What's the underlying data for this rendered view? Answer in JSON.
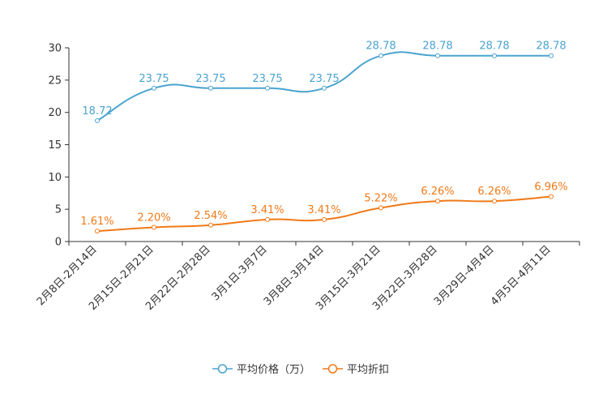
{
  "chart_data": {
    "type": "line",
    "title": "",
    "xlabel": "",
    "ylabel": "",
    "ylim": [
      0,
      30
    ],
    "yticks": [
      0,
      5,
      10,
      15,
      20,
      25,
      30
    ],
    "categories": [
      "2月8日-2月14日",
      "2月15日-2月21日",
      "2月22日-2月28日",
      "3月1日-3月7日",
      "3月8日-3月14日",
      "3月15日-3月21日",
      "3月22日-3月28日",
      "3月29日-4月4日",
      "4月5日-4月11日"
    ],
    "series": [
      {
        "name": "平均价格（万）",
        "color": "#4aa3cf",
        "values": [
          18.72,
          23.75,
          23.75,
          23.75,
          23.75,
          28.78,
          28.78,
          28.78,
          28.78
        ],
        "labels": [
          "18.72",
          "23.75",
          "23.75",
          "23.75",
          "23.75",
          "28.78",
          "28.78",
          "28.78",
          "28.78"
        ]
      },
      {
        "name": "平均折扣",
        "color": "#f07a18",
        "values": [
          1.61,
          2.2,
          2.54,
          3.41,
          3.41,
          5.22,
          6.26,
          6.26,
          6.96
        ],
        "labels": [
          "1.61%",
          "2.20%",
          "2.54%",
          "3.41%",
          "3.41%",
          "5.22%",
          "6.26%",
          "6.26%",
          "6.96%"
        ]
      }
    ],
    "legend_position": "bottom-center",
    "grid": false
  }
}
